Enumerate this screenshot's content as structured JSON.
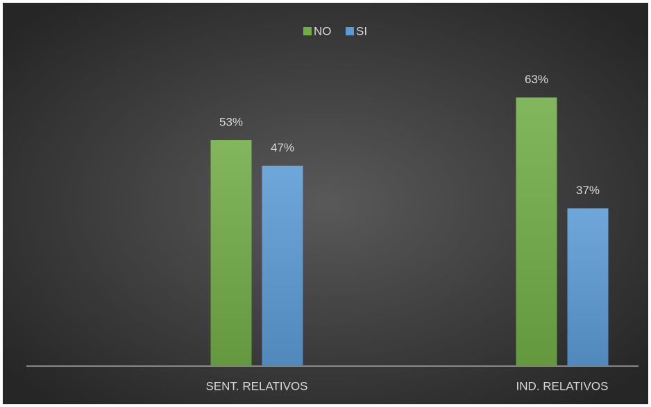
{
  "chart_data": {
    "type": "bar",
    "categories": [
      "SENT. RELATIVOS",
      "IND. RELATIVOS"
    ],
    "series": [
      {
        "name": "NO",
        "color": "#70ad47",
        "values": [
          53,
          63
        ],
        "value_labels": [
          "53%",
          "63%"
        ]
      },
      {
        "name": "SI",
        "color": "#5b9bd5",
        "values": [
          47,
          37
        ],
        "value_labels": [
          "47%",
          "37%"
        ]
      }
    ],
    "ylim": [
      0,
      70
    ],
    "legend": "top"
  }
}
